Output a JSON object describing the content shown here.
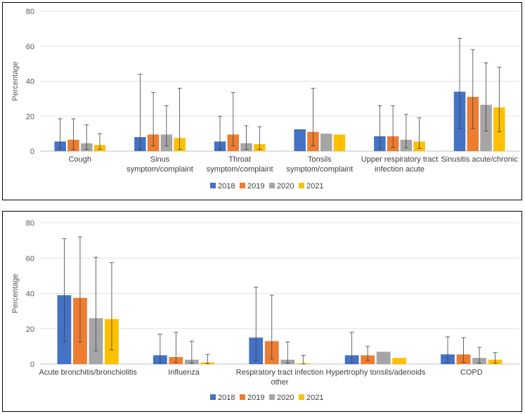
{
  "chart_data": [
    {
      "type": "bar",
      "ylabel": "Percentage",
      "ylim": [
        0,
        80
      ],
      "yticks": [
        "0",
        "20",
        "40",
        "60",
        "80"
      ],
      "categories": [
        [
          "Cough"
        ],
        [
          "Sinus",
          "symptom/complaint"
        ],
        [
          "Throat",
          "symptom/complaint"
        ],
        [
          "Tonsils",
          "symptom/complaint"
        ],
        [
          "Upper respiratory tract",
          "infection acute"
        ],
        [
          "Sinusitis acute/chronic"
        ]
      ],
      "series": [
        {
          "name": "2018",
          "color": "#4472C4",
          "values": [
            5.5,
            8.0,
            5.5,
            12.5,
            8.5,
            34.0
          ],
          "err_low": [
            1.5,
            1.0,
            1.0,
            null,
            1.5,
            13.0
          ],
          "err_high": [
            18.5,
            44.0,
            20.0,
            null,
            26.0,
            64.5
          ]
        },
        {
          "name": "2019",
          "color": "#ED7D31",
          "values": [
            6.5,
            9.5,
            9.5,
            11.0,
            8.5,
            31.0
          ],
          "err_low": [
            1.0,
            3.0,
            3.0,
            3.0,
            2.0,
            13.0
          ],
          "err_high": [
            18.5,
            33.5,
            33.5,
            36.0,
            26.0,
            58.0
          ]
        },
        {
          "name": "2020",
          "color": "#A5A5A5",
          "values": [
            4.5,
            9.5,
            4.5,
            10.0,
            6.5,
            26.5
          ],
          "err_low": [
            1.0,
            3.0,
            1.0,
            null,
            2.0,
            11.5
          ],
          "err_high": [
            15.0,
            26.0,
            14.5,
            null,
            21.0,
            50.5
          ]
        },
        {
          "name": "2021",
          "color": "#FFC000",
          "values": [
            3.5,
            7.5,
            4.0,
            9.5,
            5.5,
            25.0
          ],
          "err_low": [
            1.0,
            1.0,
            1.0,
            null,
            1.5,
            11.0
          ],
          "err_high": [
            10.0,
            36.0,
            14.0,
            null,
            19.0,
            48.0
          ]
        }
      ]
    },
    {
      "type": "bar",
      "ylabel": "Percentage",
      "ylim": [
        0,
        80
      ],
      "yticks": [
        "0",
        "20",
        "40",
        "60",
        "80"
      ],
      "categories": [
        [
          "Acute bronchitis/bronchiolitis"
        ],
        [
          "Influenza"
        ],
        [
          "Respiratory tract infection",
          "other"
        ],
        [
          "Hypertrophy tonsils/adenoids"
        ],
        [
          "COPD"
        ]
      ],
      "series": [
        {
          "name": "2018",
          "color": "#4472C4",
          "values": [
            39.0,
            5.0,
            15.0,
            5.0,
            5.5
          ],
          "err_low": [
            12.5,
            1.0,
            2.0,
            1.0,
            1.0
          ],
          "err_high": [
            71.0,
            17.0,
            43.5,
            18.0,
            15.5
          ]
        },
        {
          "name": "2019",
          "color": "#ED7D31",
          "values": [
            37.5,
            4.0,
            13.0,
            5.0,
            5.5
          ],
          "err_low": [
            12.5,
            1.0,
            3.0,
            2.0,
            1.0
          ],
          "err_high": [
            72.0,
            18.0,
            39.0,
            10.0,
            15.0
          ]
        },
        {
          "name": "2020",
          "color": "#A5A5A5",
          "values": [
            26.0,
            2.5,
            2.5,
            7.0,
            3.5
          ],
          "err_low": [
            7.5,
            0.5,
            0.5,
            null,
            0.5
          ],
          "err_high": [
            60.5,
            13.0,
            12.5,
            null,
            9.5
          ]
        },
        {
          "name": "2021",
          "color": "#FFC000",
          "values": [
            25.5,
            1.0,
            0.5,
            3.5,
            2.5
          ],
          "err_low": [
            8.0,
            0.2,
            0.1,
            null,
            0.5
          ],
          "err_high": [
            57.5,
            5.5,
            5.0,
            null,
            6.5
          ]
        }
      ]
    }
  ]
}
